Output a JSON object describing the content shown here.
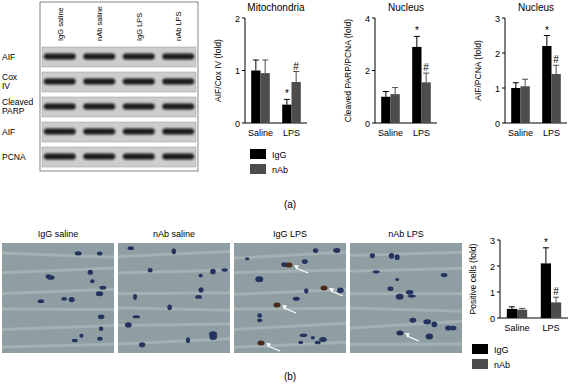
{
  "chart_data": [
    {
      "type": "bar",
      "title": "Mitochondria",
      "ylabel": "AIF/Cox IV (fold)",
      "categories": [
        "Saline",
        "LPS"
      ],
      "series": [
        {
          "name": "IgG",
          "color": "#000000",
          "values": [
            1.0,
            0.35
          ],
          "errors": [
            0.2,
            0.1
          ]
        },
        {
          "name": "nAb",
          "color": "#4d4d4d",
          "values": [
            0.95,
            0.78
          ],
          "errors": [
            0.25,
            0.2
          ]
        }
      ],
      "ylim": [
        0,
        2
      ],
      "yticks": [
        0,
        1,
        2
      ],
      "legend": "bottom",
      "annotations": [
        {
          "text": "*",
          "series": "IgG",
          "category": "LPS"
        },
        {
          "text": "#",
          "series": "nAb",
          "category": "LPS"
        }
      ]
    },
    {
      "type": "bar",
      "title": "Nucleus",
      "ylabel": "Cleaved PARP/PCNA (fold)",
      "categories": [
        "Saline",
        "LPS"
      ],
      "series": [
        {
          "name": "IgG",
          "color": "#000000",
          "values": [
            1.0,
            2.9
          ],
          "errors": [
            0.2,
            0.4
          ]
        },
        {
          "name": "nAb",
          "color": "#4d4d4d",
          "values": [
            1.1,
            1.55
          ],
          "errors": [
            0.25,
            0.35
          ]
        }
      ],
      "ylim": [
        0,
        4
      ],
      "yticks": [
        0,
        2,
        4
      ],
      "annotations": [
        {
          "text": "*",
          "series": "IgG",
          "category": "LPS"
        },
        {
          "text": "#",
          "series": "nAb",
          "category": "LPS"
        }
      ]
    },
    {
      "type": "bar",
      "title": "Nucleus",
      "ylabel": "AIF/PCNA (fold)",
      "categories": [
        "Saline",
        "LPS"
      ],
      "series": [
        {
          "name": "IgG",
          "color": "#000000",
          "values": [
            1.0,
            2.2
          ],
          "errors": [
            0.15,
            0.3
          ]
        },
        {
          "name": "nAb",
          "color": "#4d4d4d",
          "values": [
            1.05,
            1.4
          ],
          "errors": [
            0.2,
            0.25
          ]
        }
      ],
      "ylim": [
        0,
        3
      ],
      "yticks": [
        0,
        1,
        2,
        3
      ],
      "annotations": [
        {
          "text": "*",
          "series": "IgG",
          "category": "LPS"
        },
        {
          "text": "#",
          "series": "nAb",
          "category": "LPS"
        }
      ]
    },
    {
      "type": "bar",
      "ylabel": "Positive cells (fold)",
      "categories": [
        "Saline",
        "LPS"
      ],
      "series": [
        {
          "name": "IgG",
          "color": "#000000",
          "values": [
            0.35,
            2.1
          ],
          "errors": [
            0.08,
            0.6
          ]
        },
        {
          "name": "nAb",
          "color": "#4d4d4d",
          "values": [
            0.32,
            0.6
          ],
          "errors": [
            0.05,
            0.2
          ]
        }
      ],
      "ylim": [
        0,
        3
      ],
      "yticks": [
        0,
        1,
        2,
        3
      ],
      "legend": "bottom",
      "annotations": [
        {
          "text": "*",
          "series": "IgG",
          "category": "LPS"
        },
        {
          "text": "#",
          "series": "nAb",
          "category": "LPS"
        }
      ]
    }
  ],
  "blot": {
    "lanes": [
      "IgG saline",
      "nAb saline",
      "IgG LPS",
      "nAb LPS"
    ],
    "rows": [
      "AIF",
      "Cox IV",
      "Cleaved PARP",
      "AIF",
      "PCNA"
    ]
  },
  "micrographs": {
    "titles": [
      "IgG saline",
      "nAb saline",
      "IgG LPS",
      "nAb LPS"
    ]
  },
  "panel_labels": [
    "(a)",
    "(b)"
  ]
}
